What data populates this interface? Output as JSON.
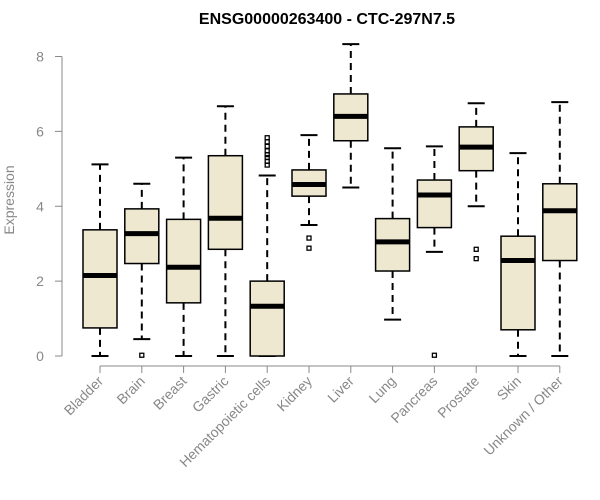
{
  "chart_data": {
    "type": "boxplot",
    "title": "ENSG00000263400 - CTC-297N7.5",
    "xlabel": "",
    "ylabel": "Expression",
    "ylim": [
      0,
      8.4
    ],
    "yticks": [
      0,
      2,
      4,
      6,
      8
    ],
    "box_color": "#efe8d0",
    "categories": [
      "Bladder",
      "Brain",
      "Breast",
      "Gastric",
      "Hematopoietic cells",
      "Kidney",
      "Liver",
      "Lung",
      "Pancreas",
      "Prostate",
      "Skin",
      "Unknown / Other"
    ],
    "boxes": [
      {
        "name": "Bladder",
        "min": 0,
        "q1": 0.75,
        "median": 2.15,
        "q3": 3.37,
        "max": 5.12,
        "outliers": []
      },
      {
        "name": "Brain",
        "min": 0.45,
        "q1": 2.47,
        "median": 3.27,
        "q3": 3.93,
        "max": 4.6,
        "outliers": [
          0.02
        ]
      },
      {
        "name": "Breast",
        "min": 0,
        "q1": 1.42,
        "median": 2.37,
        "q3": 3.65,
        "max": 5.3,
        "outliers": []
      },
      {
        "name": "Gastric",
        "min": 0,
        "q1": 2.85,
        "median": 3.68,
        "q3": 5.35,
        "max": 6.67,
        "outliers": []
      },
      {
        "name": "Hematopoietic cells",
        "min": 0,
        "q1": 0,
        "median": 1.33,
        "q3": 2.0,
        "max": 4.82,
        "outliers": [
          5.1,
          5.2,
          5.3,
          5.38,
          5.48,
          5.6,
          5.72,
          5.83
        ]
      },
      {
        "name": "Kidney",
        "min": 3.5,
        "q1": 4.27,
        "median": 4.58,
        "q3": 4.97,
        "max": 5.9,
        "outliers": [
          3.15,
          2.88
        ]
      },
      {
        "name": "Liver",
        "min": 4.5,
        "q1": 5.75,
        "median": 6.4,
        "q3": 7.0,
        "max": 8.33,
        "outliers": []
      },
      {
        "name": "Lung",
        "min": 0.97,
        "q1": 2.27,
        "median": 3.05,
        "q3": 3.67,
        "max": 5.55,
        "outliers": []
      },
      {
        "name": "Pancreas",
        "min": 2.78,
        "q1": 3.43,
        "median": 4.3,
        "q3": 4.7,
        "max": 5.6,
        "outliers": [
          0.02
        ]
      },
      {
        "name": "Prostate",
        "min": 4.0,
        "q1": 4.95,
        "median": 5.58,
        "q3": 6.12,
        "max": 6.75,
        "outliers": [
          2.85,
          2.6
        ]
      },
      {
        "name": "Skin",
        "min": 0,
        "q1": 0.7,
        "median": 2.55,
        "q3": 3.2,
        "max": 5.42,
        "outliers": []
      },
      {
        "name": "Unknown / Other",
        "min": 0,
        "q1": 2.55,
        "median": 3.88,
        "q3": 4.6,
        "max": 6.78,
        "outliers": []
      }
    ]
  }
}
